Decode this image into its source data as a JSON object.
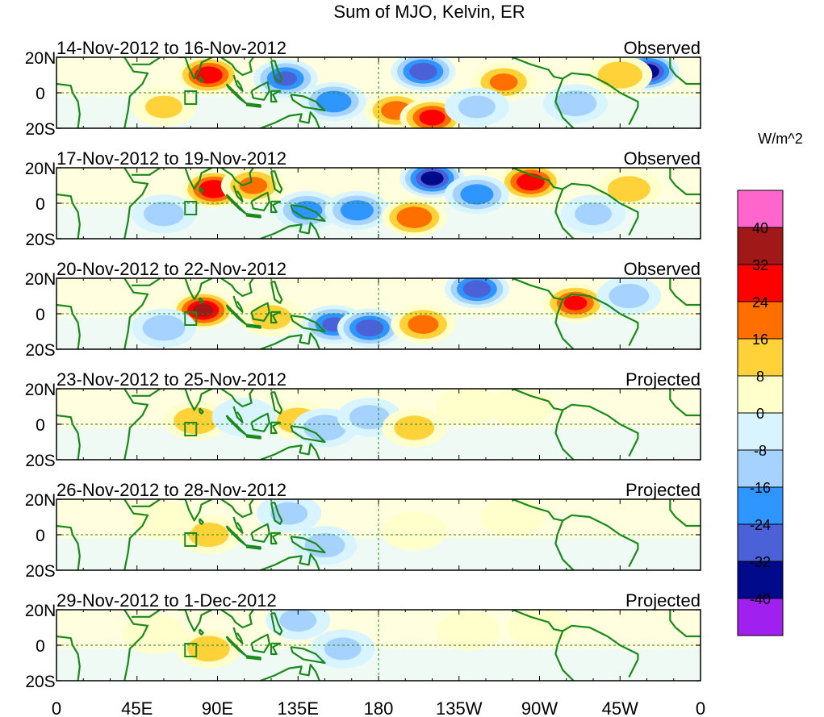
{
  "title": "Sum of MJO, Kelvin, ER",
  "colorbar": {
    "units": "W/m^2",
    "colors": [
      "#ff66cc",
      "#a01818",
      "#ff0000",
      "#ff6f00",
      "#ffd23a",
      "#ffffcc",
      "#d8f4ff",
      "#a6d2ff",
      "#2f96ff",
      "#4a61d8",
      "#000a8a",
      "#a020f0"
    ],
    "labels": [
      "40",
      "32",
      "24",
      "16",
      "8",
      "0",
      "-8",
      "-16",
      "-24",
      "-32",
      "-40"
    ]
  },
  "axes": {
    "lat_labels": [
      "20N",
      "0",
      "20S"
    ],
    "lon_labels": [
      "0",
      "45E",
      "90E",
      "135E",
      "180",
      "135W",
      "90W",
      "45W",
      "0"
    ]
  },
  "panels": [
    {
      "period": "14-Nov-2012 to 16-Nov-2012",
      "status": "Observed",
      "anomalies": [
        {
          "lon": 85,
          "lat": 10,
          "v": 30
        },
        {
          "lon": 128,
          "lat": 8,
          "v": -26
        },
        {
          "lon": 155,
          "lat": -5,
          "v": -24
        },
        {
          "lon": 205,
          "lat": 12,
          "v": -30
        },
        {
          "lon": 190,
          "lat": -10,
          "v": 20
        },
        {
          "lon": 210,
          "lat": -14,
          "v": 28
        },
        {
          "lon": 250,
          "lat": 6,
          "v": 18
        },
        {
          "lon": 330,
          "lat": 12,
          "v": -38
        },
        {
          "lon": 315,
          "lat": 10,
          "v": 16
        },
        {
          "lon": 290,
          "lat": -6,
          "v": -14
        },
        {
          "lon": 60,
          "lat": -8,
          "v": 10
        },
        {
          "lon": 235,
          "lat": -8,
          "v": -10
        }
      ]
    },
    {
      "period": "17-Nov-2012 to 19-Nov-2012",
      "status": "Observed",
      "anomalies": [
        {
          "lon": 88,
          "lat": 8,
          "v": 32
        },
        {
          "lon": 110,
          "lat": 10,
          "v": 18
        },
        {
          "lon": 140,
          "lat": -4,
          "v": -20
        },
        {
          "lon": 168,
          "lat": -4,
          "v": -22
        },
        {
          "lon": 210,
          "lat": 14,
          "v": -36
        },
        {
          "lon": 265,
          "lat": 12,
          "v": 30
        },
        {
          "lon": 200,
          "lat": -8,
          "v": 24
        },
        {
          "lon": 235,
          "lat": 5,
          "v": -22
        },
        {
          "lon": 60,
          "lat": -6,
          "v": -12
        },
        {
          "lon": 320,
          "lat": 8,
          "v": 14
        },
        {
          "lon": 300,
          "lat": -6,
          "v": -10
        }
      ]
    },
    {
      "period": "20-Nov-2012 to 22-Nov-2012",
      "status": "Observed",
      "anomalies": [
        {
          "lon": 82,
          "lat": 2,
          "v": 34
        },
        {
          "lon": 155,
          "lat": -6,
          "v": -26
        },
        {
          "lon": 175,
          "lat": -8,
          "v": -30
        },
        {
          "lon": 235,
          "lat": 14,
          "v": -30
        },
        {
          "lon": 205,
          "lat": -6,
          "v": 20
        },
        {
          "lon": 290,
          "lat": 6,
          "v": 26
        },
        {
          "lon": 120,
          "lat": -2,
          "v": 12
        },
        {
          "lon": 60,
          "lat": -8,
          "v": -14
        },
        {
          "lon": 320,
          "lat": 10,
          "v": -12
        }
      ]
    },
    {
      "period": "23-Nov-2012 to 25-Nov-2012",
      "status": "Projected",
      "anomalies": [
        {
          "lon": 78,
          "lat": 2,
          "v": 16
        },
        {
          "lon": 135,
          "lat": 2,
          "v": 14
        },
        {
          "lon": 150,
          "lat": -2,
          "v": -14
        },
        {
          "lon": 175,
          "lat": 4,
          "v": -12
        },
        {
          "lon": 200,
          "lat": -2,
          "v": 12
        },
        {
          "lon": 230,
          "lat": 10,
          "v": 8
        },
        {
          "lon": 260,
          "lat": 10,
          "v": 8
        },
        {
          "lon": 105,
          "lat": 4,
          "v": -8
        }
      ]
    },
    {
      "period": "26-Nov-2012 to 28-Nov-2012",
      "status": "Projected",
      "anomalies": [
        {
          "lon": 85,
          "lat": 0,
          "v": 12
        },
        {
          "lon": 130,
          "lat": 12,
          "v": -10
        },
        {
          "lon": 150,
          "lat": -6,
          "v": -12
        },
        {
          "lon": 200,
          "lat": 2,
          "v": 8
        },
        {
          "lon": 255,
          "lat": 10,
          "v": 8
        },
        {
          "lon": 60,
          "lat": 8,
          "v": 6
        }
      ]
    },
    {
      "period": "29-Nov-2012 to 1-Dec-2012",
      "status": "Projected",
      "anomalies": [
        {
          "lon": 85,
          "lat": -2,
          "v": 14
        },
        {
          "lon": 135,
          "lat": 14,
          "v": -10
        },
        {
          "lon": 160,
          "lat": -2,
          "v": -10
        },
        {
          "lon": 230,
          "lat": 8,
          "v": 8
        },
        {
          "lon": 270,
          "lat": 10,
          "v": 6
        },
        {
          "lon": 55,
          "lat": 6,
          "v": 6
        }
      ]
    }
  ]
}
